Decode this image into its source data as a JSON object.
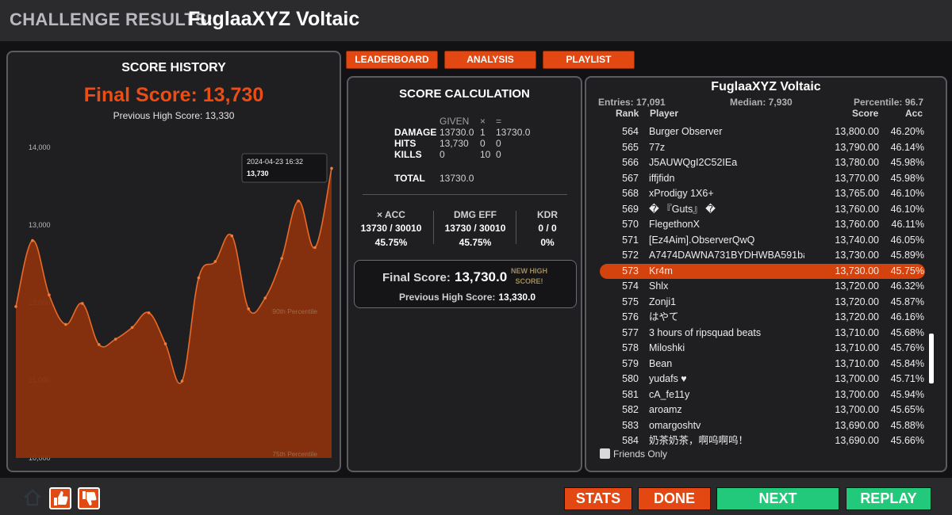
{
  "header": {
    "label": "CHALLENGE RESULTS:",
    "title": "FuglaaXYZ Voltaic"
  },
  "history": {
    "title": "SCORE HISTORY",
    "final_score": "Final Score: 13,730",
    "previous_high": "Previous High Score: 13,330",
    "tooltip_date": "2024-04-23 16:32",
    "tooltip_value": "13,730",
    "percentile_90": "90th Percentile",
    "percentile_75": "75th Percentile",
    "accent": "#e34812"
  },
  "chart_data": {
    "type": "area",
    "ylim": [
      10000,
      14000
    ],
    "y_ticks": [
      "14,000",
      "13,000",
      "12,000",
      "11,000",
      "10,000"
    ],
    "y_tick_values": [
      14000,
      13000,
      12000,
      11000,
      10000
    ],
    "values": [
      11950,
      12800,
      12100,
      11720,
      11990,
      11460,
      11530,
      11680,
      11870,
      11470,
      10990,
      12320,
      12530,
      12860,
      11920,
      12060,
      12570,
      13310,
      12710,
      13730
    ],
    "reference_lines": [
      {
        "label": "90th Percentile",
        "value": 11900
      },
      {
        "label": "75th Percentile",
        "value": 10000
      }
    ]
  },
  "tabs": {
    "leaderboard": "LEADERBOARD",
    "analysis": "ANALYSIS",
    "playlist": "PLAYLIST"
  },
  "calc": {
    "title": "SCORE CALCULATION",
    "col_given": "GIVEN",
    "col_times": "×",
    "col_eq": "=",
    "rows": [
      {
        "name": "DAMAGE",
        "given": "13730.0",
        "mult": "1",
        "result": "13730.0"
      },
      {
        "name": "HITS",
        "given": "13,730",
        "mult": "0",
        "result": "0"
      },
      {
        "name": "KILLS",
        "given": "0",
        "mult": "10",
        "result": "0"
      }
    ],
    "total_label": "TOTAL",
    "total_value": "13730.0",
    "stats": [
      {
        "label": "× ACC",
        "value": "13730 / 30010",
        "pct": "45.75%"
      },
      {
        "label": "DMG EFF",
        "value": "13730 / 30010",
        "pct": "45.75%"
      },
      {
        "label": "KDR",
        "value": "0 / 0",
        "pct": "0%"
      }
    ],
    "final_label": "Final Score:",
    "final_value": "13,730.0",
    "new_high": "NEW HIGH SCORE!",
    "prev_label": "Previous High Score:",
    "prev_value": "13,330.0"
  },
  "leaderboard": {
    "title": "FuglaaXYZ Voltaic",
    "entries": "Entries: 17,091",
    "median": "Median: 7,930",
    "percentile": "Percentile: 96.7",
    "col_rank": "Rank",
    "col_player": "Player",
    "col_score": "Score",
    "col_acc": "Acc",
    "highlight_color": "#d4420d",
    "rows": [
      {
        "rank": "564",
        "player": "Burger Observer",
        "score": "13,800.00",
        "acc": "46.20%"
      },
      {
        "rank": "565",
        "player": "77z",
        "score": "13,790.00",
        "acc": "46.14%"
      },
      {
        "rank": "566",
        "player": "J5AUWQgI2C52IEa",
        "score": "13,780.00",
        "acc": "45.98%"
      },
      {
        "rank": "567",
        "player": "iffjfidn",
        "score": "13,770.00",
        "acc": "45.98%"
      },
      {
        "rank": "568",
        "player": "xProdigy 1X6+",
        "score": "13,765.00",
        "acc": "46.10%"
      },
      {
        "rank": "569",
        "player": "� 『Guts』 �",
        "score": "13,760.00",
        "acc": "46.10%"
      },
      {
        "rank": "570",
        "player": "FlegethonX",
        "score": "13,760.00",
        "acc": "46.11%"
      },
      {
        "rank": "571",
        "player": "[Ez4Aim].ObserverQwQ",
        "score": "13,740.00",
        "acc": "46.05%"
      },
      {
        "rank": "572",
        "player": "A7474DAWNA731BYDHWBA591bá",
        "score": "13,730.00",
        "acc": "45.89%"
      },
      {
        "rank": "573",
        "player": "Kr4m",
        "score": "13,730.00",
        "acc": "45.75%",
        "highlight": true
      },
      {
        "rank": "574",
        "player": "Shlx",
        "score": "13,720.00",
        "acc": "46.32%"
      },
      {
        "rank": "575",
        "player": "Zonji1",
        "score": "13,720.00",
        "acc": "45.87%"
      },
      {
        "rank": "576",
        "player": "はやて",
        "score": "13,720.00",
        "acc": "46.16%"
      },
      {
        "rank": "577",
        "player": "3 hours of ripsquad beats",
        "score": "13,710.00",
        "acc": "45.68%"
      },
      {
        "rank": "578",
        "player": "Miloshki",
        "score": "13,710.00",
        "acc": "45.76%"
      },
      {
        "rank": "579",
        "player": "Bean",
        "score": "13,710.00",
        "acc": "45.84%"
      },
      {
        "rank": "580",
        "player": "yudafs ♥",
        "score": "13,700.00",
        "acc": "45.71%"
      },
      {
        "rank": "581",
        "player": "cA_fe11y",
        "score": "13,700.00",
        "acc": "45.94%"
      },
      {
        "rank": "582",
        "player": "aroamz",
        "score": "13,700.00",
        "acc": "45.65%"
      },
      {
        "rank": "583",
        "player": "omargoshtv",
        "score": "13,690.00",
        "acc": "45.88%"
      },
      {
        "rank": "584",
        "player": "奶茶奶茶，啊呜啊呜！",
        "score": "13,690.00",
        "acc": "45.66%"
      }
    ],
    "friends_only": "Friends Only"
  },
  "buttons": {
    "stats": "STATS",
    "done": "DONE",
    "next": "NEXT",
    "replay": "REPLAY"
  },
  "icons": {
    "home": "home-icon",
    "like": "thumbs-up-icon",
    "dislike": "thumbs-down-icon"
  }
}
